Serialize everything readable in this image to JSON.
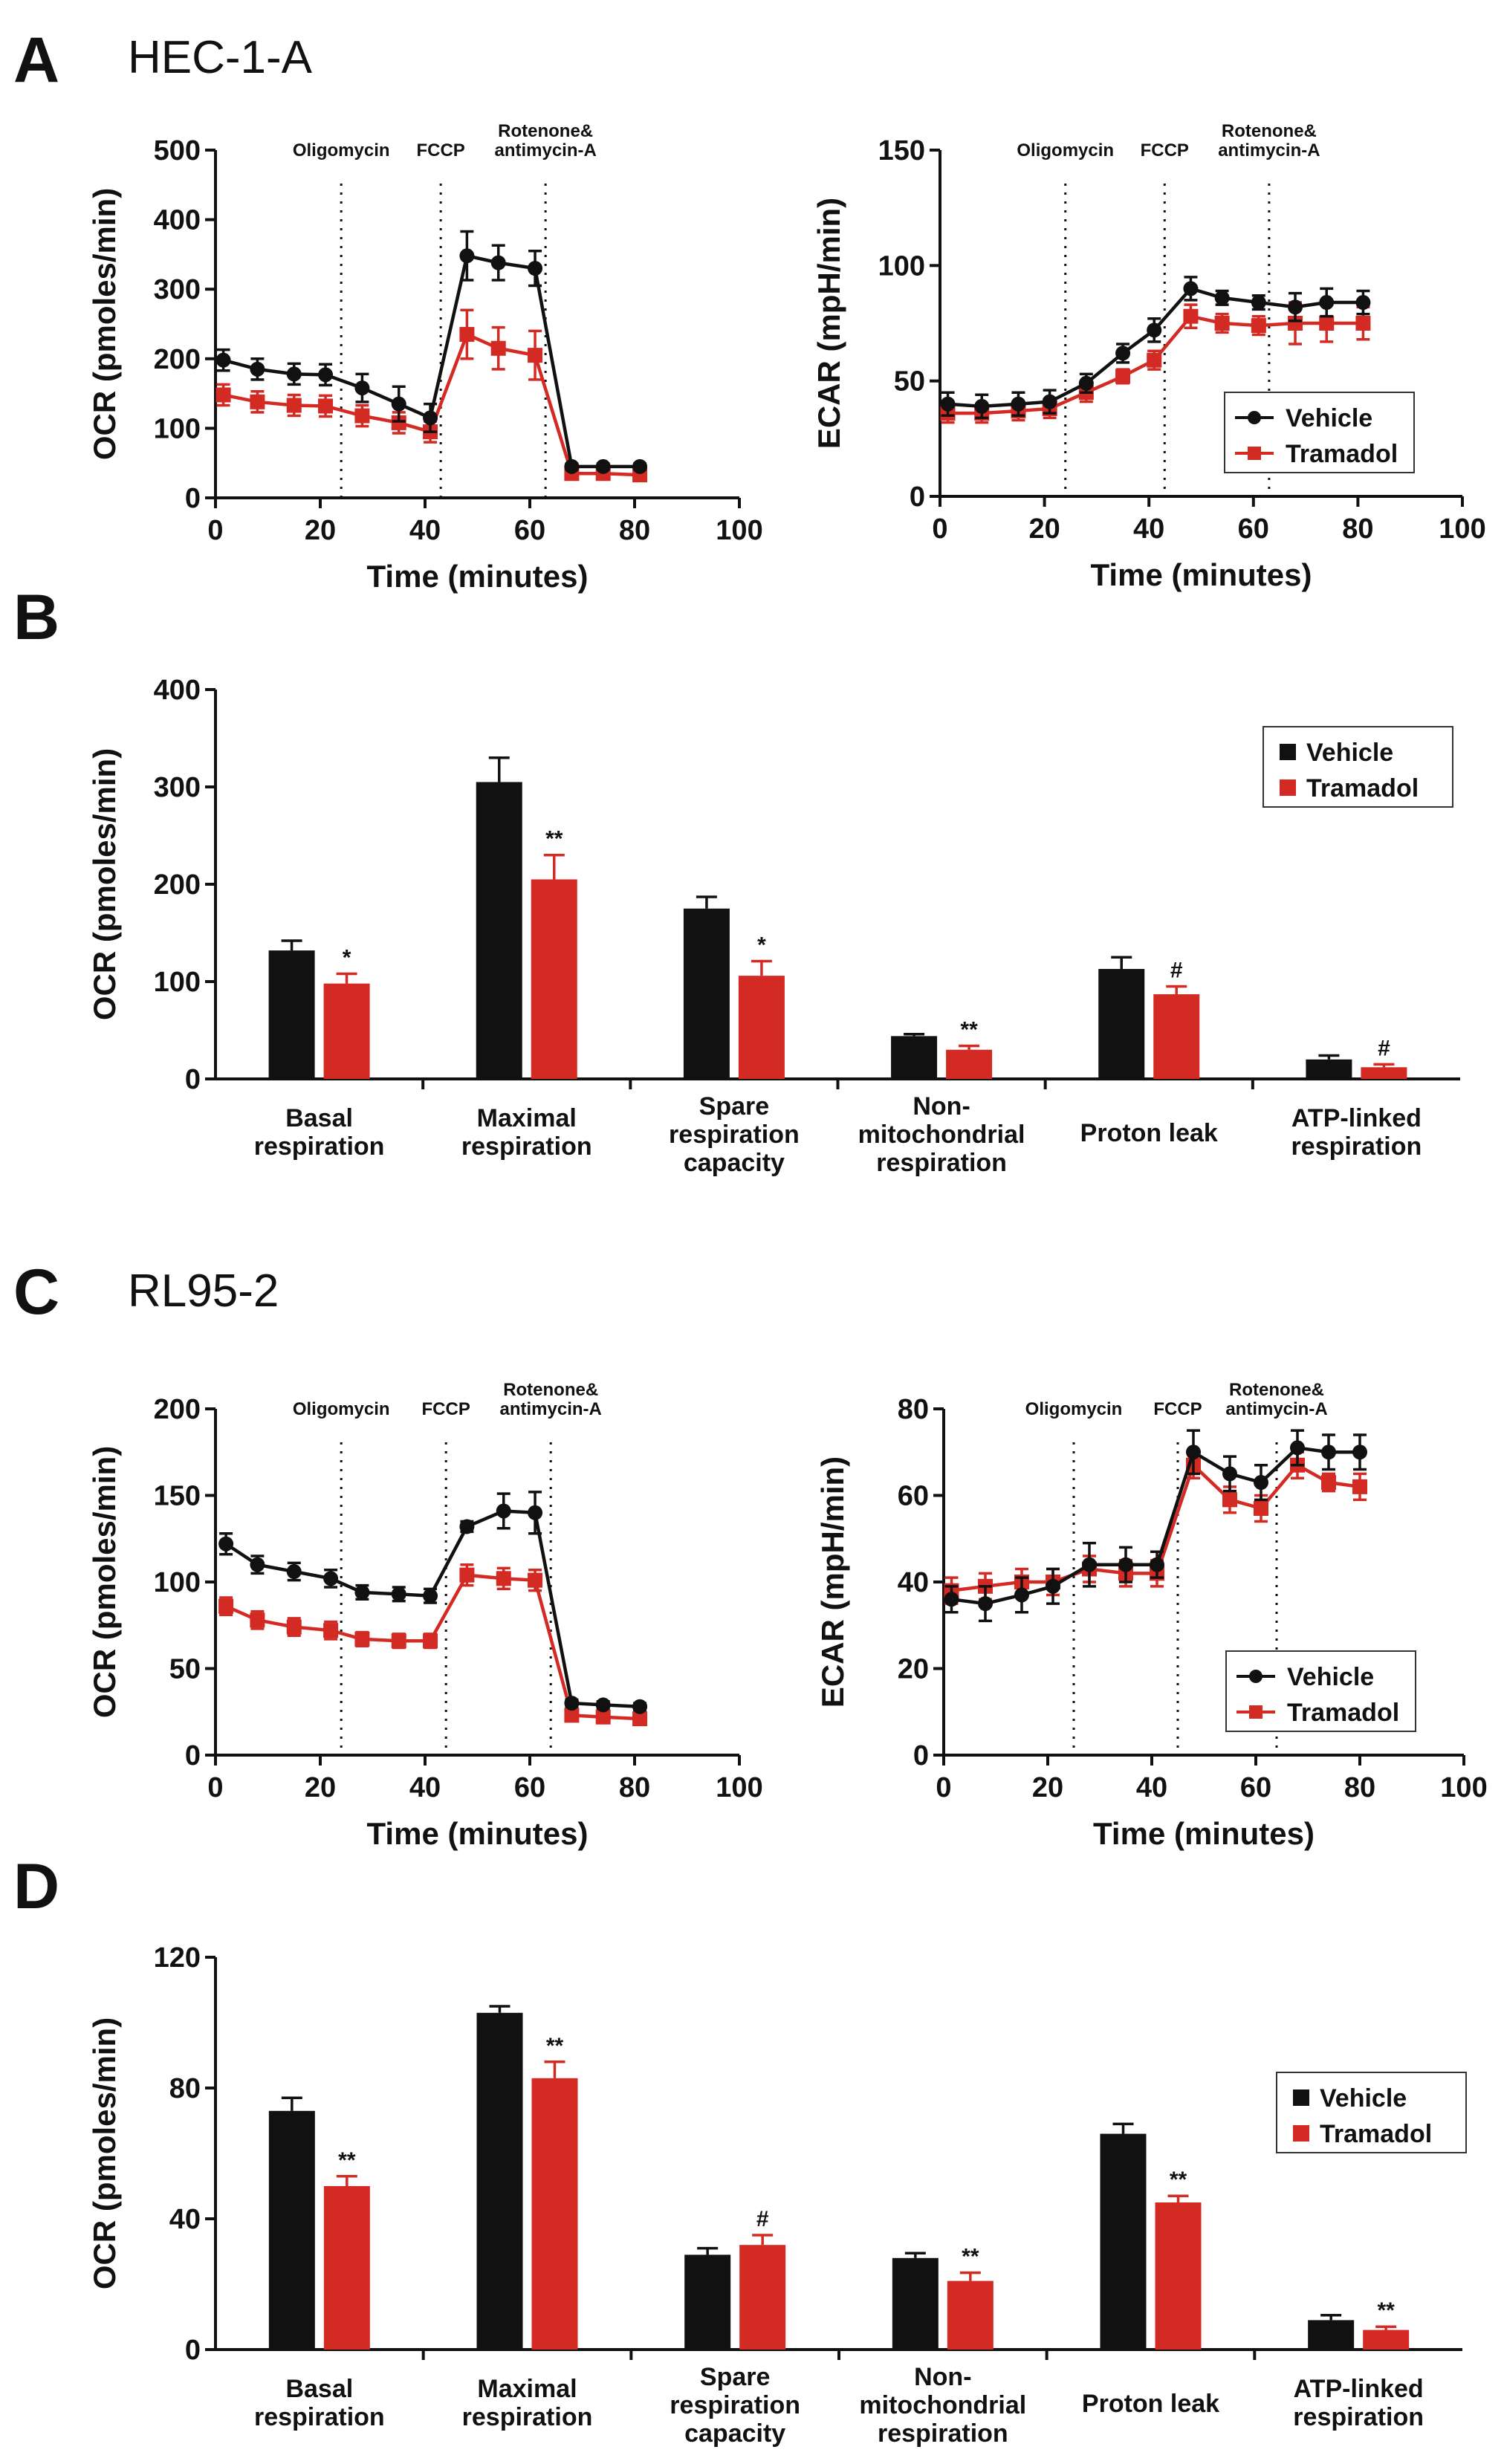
{
  "panels": {
    "A": {
      "label": "A",
      "title": "HEC-1-A"
    },
    "B": {
      "label": "B"
    },
    "C": {
      "label": "C",
      "title": "RL95-2"
    },
    "D": {
      "label": "D"
    }
  },
  "colors": {
    "vehicle": "#111111",
    "tramadol": "#d42a24"
  },
  "chart_data": [
    {
      "id": "A-OCR",
      "panel": "A",
      "type": "line",
      "xlabel": "Time (minutes)",
      "ylabel": "OCR (pmoles/min)",
      "xlim": [
        0,
        100
      ],
      "ylim": [
        0,
        500
      ],
      "xticks": [
        0,
        20,
        40,
        60,
        80,
        100
      ],
      "yticks": [
        0,
        100,
        200,
        300,
        400,
        500
      ],
      "injections": [
        {
          "label": "Oligomycin",
          "x": 24
        },
        {
          "label": "FCCP",
          "x": 43
        },
        {
          "label": "Rotenone&",
          "label2": "antimycin-A",
          "x": 63
        }
      ],
      "x": [
        1.5,
        8,
        15,
        21,
        28,
        35,
        41,
        48,
        54,
        61,
        68,
        74,
        81
      ],
      "series": [
        {
          "name": "Vehicle",
          "values": [
            198,
            185,
            178,
            177,
            158,
            135,
            115,
            348,
            338,
            330,
            45,
            45,
            45
          ],
          "errors": [
            15,
            15,
            15,
            15,
            20,
            25,
            20,
            35,
            25,
            25,
            4,
            4,
            4
          ]
        },
        {
          "name": "Tramadol",
          "values": [
            148,
            138,
            133,
            132,
            118,
            108,
            95,
            235,
            215,
            205,
            35,
            35,
            33
          ],
          "errors": [
            15,
            15,
            15,
            15,
            15,
            15,
            15,
            35,
            30,
            35,
            4,
            4,
            4
          ]
        }
      ],
      "legend": false
    },
    {
      "id": "A-ECAR",
      "panel": "A",
      "type": "line",
      "xlabel": "Time (minutes)",
      "ylabel": "ECAR (mpH/min)",
      "xlim": [
        0,
        100
      ],
      "ylim": [
        0,
        150
      ],
      "xticks": [
        0,
        20,
        40,
        60,
        80,
        100
      ],
      "yticks": [
        0,
        50,
        100,
        150
      ],
      "injections": [
        {
          "label": "Oligomycin",
          "x": 24
        },
        {
          "label": "FCCP",
          "x": 43
        },
        {
          "label": "Rotenone&",
          "label2": "antimycin-A",
          "x": 63
        }
      ],
      "x": [
        1.5,
        8,
        15,
        21,
        28,
        35,
        41,
        48,
        54,
        61,
        68,
        74,
        81
      ],
      "series": [
        {
          "name": "Vehicle",
          "values": [
            40,
            39,
            40,
            41,
            49,
            62,
            72,
            90,
            86,
            84,
            82,
            84,
            84
          ],
          "errors": [
            5,
            5,
            5,
            5,
            4,
            4,
            5,
            5,
            3,
            3,
            6,
            6,
            5
          ]
        },
        {
          "name": "Tramadol",
          "values": [
            36,
            36,
            37,
            38,
            45,
            52,
            59,
            78,
            75,
            74,
            75,
            75,
            75
          ],
          "errors": [
            4,
            4,
            4,
            4,
            4,
            3,
            4,
            5,
            4,
            4,
            9,
            8,
            7
          ]
        }
      ],
      "legend": true,
      "legend_position": "bottom-right"
    },
    {
      "id": "B",
      "panel": "B",
      "type": "bar",
      "ylabel": "OCR (pmoles/min)",
      "ylim": [
        0,
        400
      ],
      "yticks": [
        0,
        100,
        200,
        300,
        400
      ],
      "categories": [
        [
          "Basal",
          "respiration"
        ],
        [
          "Maximal",
          "respiration"
        ],
        [
          "Spare",
          "respiration",
          "capacity"
        ],
        [
          "Non-",
          "mitochondrial",
          "respiration"
        ],
        [
          "Proton leak"
        ],
        [
          "ATP-linked",
          "respiration"
        ]
      ],
      "series": [
        {
          "name": "Vehicle",
          "values": [
            132,
            305,
            175,
            44,
            113,
            20
          ],
          "errors": [
            10,
            25,
            12,
            2,
            12,
            4
          ]
        },
        {
          "name": "Tramadol",
          "values": [
            98,
            205,
            106,
            30,
            87,
            12
          ],
          "errors": [
            10,
            25,
            15,
            4,
            8,
            3
          ]
        }
      ],
      "significance": [
        "*",
        "**",
        "*",
        "**",
        "#",
        "#"
      ],
      "legend": true,
      "legend_position": "top-right"
    },
    {
      "id": "C-OCR",
      "panel": "C",
      "type": "line",
      "xlabel": "Time (minutes)",
      "ylabel": "OCR (pmoles/min)",
      "xlim": [
        0,
        100
      ],
      "ylim": [
        0,
        200
      ],
      "xticks": [
        0,
        20,
        40,
        60,
        80,
        100
      ],
      "yticks": [
        0,
        50,
        100,
        150,
        200
      ],
      "injections": [
        {
          "label": "Oligomycin",
          "x": 24
        },
        {
          "label": "FCCP",
          "x": 44
        },
        {
          "label": "Rotenone&",
          "label2": "antimycin-A",
          "x": 64
        }
      ],
      "x": [
        2,
        8,
        15,
        22,
        28,
        35,
        41,
        48,
        55,
        61,
        68,
        74,
        81
      ],
      "series": [
        {
          "name": "Vehicle",
          "values": [
            122,
            110,
            106,
            102,
            94,
            93,
            92,
            132,
            141,
            140,
            30,
            29,
            28
          ],
          "errors": [
            6,
            5,
            5,
            5,
            4,
            4,
            4,
            3,
            10,
            12,
            2,
            2,
            2
          ]
        },
        {
          "name": "Tramadol",
          "values": [
            86,
            78,
            74,
            72,
            67,
            66,
            66,
            104,
            102,
            101,
            23,
            22,
            21
          ],
          "errors": [
            5,
            5,
            5,
            5,
            4,
            4,
            4,
            6,
            6,
            6,
            3,
            3,
            3
          ]
        }
      ],
      "legend": false
    },
    {
      "id": "C-ECAR",
      "panel": "C",
      "type": "line",
      "xlabel": "Time (minutes)",
      "ylabel": "ECAR (mpH/min)",
      "xlim": [
        0,
        100
      ],
      "ylim": [
        0,
        80
      ],
      "xticks": [
        0,
        20,
        40,
        60,
        80,
        100
      ],
      "yticks": [
        0,
        20,
        40,
        60,
        80
      ],
      "injections": [
        {
          "label": "Oligomycin",
          "x": 25
        },
        {
          "label": "FCCP",
          "x": 45
        },
        {
          "label": "Rotenone&",
          "label2": "antimycin-A",
          "x": 64
        }
      ],
      "x": [
        1.5,
        8,
        15,
        21,
        28,
        35,
        41,
        48,
        55,
        61,
        68,
        74,
        80
      ],
      "series": [
        {
          "name": "Vehicle",
          "values": [
            36,
            35,
            37,
            39,
            44,
            44,
            44,
            70,
            65,
            63,
            71,
            70,
            70
          ],
          "errors": [
            3,
            4,
            4,
            4,
            5,
            4,
            3,
            5,
            4,
            4,
            4,
            4,
            4
          ]
        },
        {
          "name": "Tramadol",
          "values": [
            38,
            39,
            40,
            40,
            43,
            42,
            42,
            67,
            59,
            57,
            67,
            63,
            62
          ],
          "errors": [
            3,
            3,
            3,
            3,
            3,
            3,
            3,
            3,
            3,
            3,
            3,
            2,
            3
          ]
        }
      ],
      "legend": true,
      "legend_position": "bottom-right"
    },
    {
      "id": "D",
      "panel": "D",
      "type": "bar",
      "ylabel": "OCR (pmoles/min)",
      "ylim": [
        0,
        120
      ],
      "yticks": [
        0,
        40,
        80,
        120
      ],
      "categories": [
        [
          "Basal",
          "respiration"
        ],
        [
          "Maximal",
          "respiration"
        ],
        [
          "Spare",
          "respiration",
          "capacity"
        ],
        [
          "Non-",
          "mitochondrial",
          "respiration"
        ],
        [
          "Proton leak"
        ],
        [
          "ATP-linked",
          "respiration"
        ]
      ],
      "series": [
        {
          "name": "Vehicle",
          "values": [
            73,
            103,
            29,
            28,
            66,
            9
          ],
          "errors": [
            4,
            2,
            2,
            1.5,
            3,
            1.5
          ]
        },
        {
          "name": "Tramadol",
          "values": [
            50,
            83,
            32,
            21,
            45,
            6
          ],
          "errors": [
            3,
            5,
            3,
            2.5,
            2,
            1
          ]
        }
      ],
      "significance": [
        "**",
        "**",
        "#",
        "**",
        "**",
        "**"
      ],
      "legend": true,
      "legend_position": "right"
    }
  ]
}
